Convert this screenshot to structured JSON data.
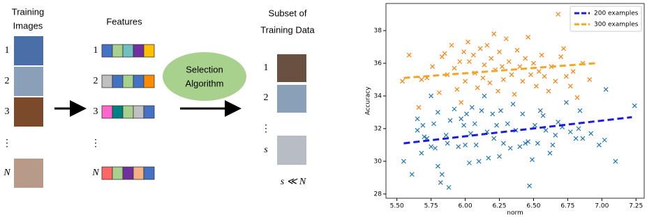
{
  "diagram": {
    "training_title": [
      "Training",
      "Images"
    ],
    "features_title": "Features",
    "subset_title": [
      "Subset of",
      "Training Data"
    ],
    "algorithm": [
      "Selection",
      "Algorithm"
    ],
    "image_labels": [
      "1",
      "2",
      "3",
      "⋮",
      "N"
    ],
    "feature_labels": [
      "1",
      "2",
      "3",
      "⋮",
      "N"
    ],
    "subset_labels": [
      "1",
      "2",
      "⋮",
      "s"
    ],
    "relation": "s ≪ N"
  },
  "chart_data": {
    "type": "scatter",
    "x_label": "norm",
    "y_label": "Accuracy",
    "xlim": [
      5.42,
      7.31
    ],
    "ylim": [
      27.74,
      39.66
    ],
    "xticks": [
      {
        "value": 5.5,
        "label": "5.50"
      },
      {
        "value": 5.75,
        "label": "5.75"
      },
      {
        "value": 6.0,
        "label": "6.00"
      },
      {
        "value": 6.25,
        "label": "6.25"
      },
      {
        "value": 6.5,
        "label": "6.50"
      },
      {
        "value": 6.75,
        "label": "6.75"
      },
      {
        "value": 7.0,
        "label": "7.00"
      },
      {
        "value": 7.25,
        "label": "7.25"
      }
    ],
    "yticks": [
      28,
      30,
      32,
      34,
      36,
      38
    ],
    "legend": "upper right",
    "series": [
      {
        "name": "200 examples",
        "color": "#1f77b4",
        "line_color": "#1c1ce0",
        "x": [
          5.55,
          5.61,
          5.65,
          5.65,
          5.68,
          5.69,
          5.7,
          5.72,
          5.75,
          5.75,
          5.77,
          5.78,
          5.8,
          5.8,
          5.82,
          5.83,
          5.86,
          5.87,
          5.88,
          5.89,
          5.92,
          5.95,
          5.97,
          5.99,
          6.0,
          6.01,
          6.03,
          6.04,
          6.05,
          6.07,
          6.08,
          6.1,
          6.12,
          6.14,
          6.16,
          6.17,
          6.2,
          6.21,
          6.23,
          6.25,
          6.26,
          6.28,
          6.31,
          6.33,
          6.35,
          6.37,
          6.4,
          6.42,
          6.44,
          6.46,
          6.47,
          6.49,
          6.51,
          6.53,
          6.55,
          6.57,
          6.59,
          6.62,
          6.64,
          6.66,
          6.68,
          6.71,
          6.74,
          6.77,
          6.81,
          6.83,
          6.84,
          6.86,
          6.92,
          6.98,
          7.02,
          7.03,
          7.1,
          7.24
        ],
        "values": [
          30.0,
          29.2,
          31.9,
          32.6,
          30.5,
          32.2,
          31.5,
          31.4,
          34.0,
          30.9,
          32.3,
          30.8,
          29.7,
          33.0,
          28.7,
          29.2,
          31.6,
          31.1,
          28.4,
          32.5,
          33.2,
          30.9,
          32.6,
          32.2,
          31.0,
          32.9,
          29.9,
          31.7,
          33.3,
          32.3,
          31.0,
          30.0,
          33.1,
          34.0,
          31.8,
          30.2,
          32.9,
          31.4,
          32.2,
          30.3,
          33.1,
          31.1,
          32.3,
          30.8,
          33.5,
          31.9,
          30.9,
          32.9,
          31.1,
          31.2,
          28.5,
          30.1,
          32.2,
          31.1,
          33.1,
          32.8,
          31.9,
          30.5,
          31.0,
          31.6,
          32.4,
          32.1,
          33.6,
          31.8,
          31.4,
          32.0,
          33.1,
          31.4,
          31.7,
          31.0,
          31.3,
          34.4,
          30.0,
          33.4
        ],
        "fit": {
          "x": [
            5.55,
            7.22
          ],
          "values": [
            31.1,
            32.7
          ]
        }
      },
      {
        "name": "300 examples",
        "color": "#ff7f0e",
        "line_color": "#f5a623",
        "x": [
          5.54,
          5.59,
          5.66,
          5.68,
          5.72,
          5.76,
          5.81,
          5.83,
          5.85,
          5.87,
          5.9,
          5.92,
          5.94,
          5.96,
          5.97,
          5.99,
          6.0,
          6.02,
          6.03,
          6.06,
          6.07,
          6.09,
          6.11,
          6.13,
          6.14,
          6.16,
          6.18,
          6.19,
          6.21,
          6.22,
          6.24,
          6.25,
          6.27,
          6.28,
          6.3,
          6.32,
          6.34,
          6.36,
          6.38,
          6.4,
          6.42,
          6.44,
          6.46,
          6.48,
          6.5,
          6.52,
          6.54,
          6.56,
          6.58,
          6.61,
          6.63,
          6.66,
          6.68,
          6.7,
          6.72,
          6.74,
          6.77,
          6.79,
          6.82,
          6.86,
          6.91
        ],
        "values": [
          34.9,
          36.5,
          33.3,
          35.0,
          35.1,
          35.8,
          34.2,
          36.4,
          36.6,
          35.3,
          37.1,
          35.7,
          34.4,
          36.1,
          33.6,
          36.7,
          34.9,
          37.3,
          36.1,
          36.5,
          35.4,
          34.5,
          36.9,
          35.1,
          35.9,
          37.1,
          34.8,
          36.3,
          37.8,
          35.6,
          34.3,
          36.7,
          35.8,
          35.0,
          37.5,
          36.1,
          35.3,
          34.1,
          36.8,
          35.8,
          34.9,
          36.3,
          37.6,
          35.3,
          36.0,
          34.6,
          35.5,
          36.5,
          35.2,
          34.3,
          35.8,
          34.9,
          39.0,
          36.4,
          36.9,
          35.2,
          34.6,
          35.5,
          33.9,
          36.0,
          35.0
        ],
        "fit": {
          "x": [
            5.55,
            6.95
          ],
          "values": [
            35.1,
            36.0
          ]
        }
      }
    ]
  }
}
